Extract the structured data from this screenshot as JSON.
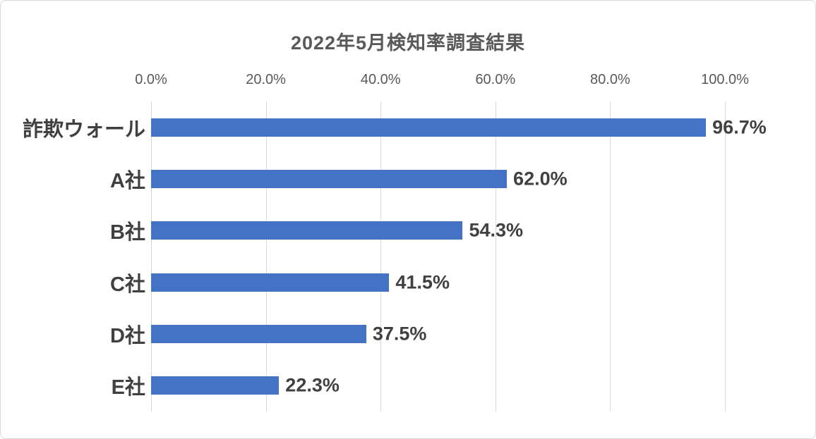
{
  "chart_data": {
    "type": "bar",
    "orientation": "horizontal",
    "title": "2022年5月検知率調査結果",
    "categories": [
      "詐欺ウォール",
      "A社",
      "B社",
      "C社",
      "D社",
      "E社"
    ],
    "values": [
      96.7,
      62.0,
      54.3,
      41.5,
      37.5,
      22.3
    ],
    "data_labels": [
      "96.7%",
      "62.0%",
      "54.3%",
      "41.5%",
      "37.5%",
      "22.3%"
    ],
    "xlim": [
      0,
      100
    ],
    "x_tick_values": [
      0,
      20,
      40,
      60,
      80,
      100
    ],
    "x_tick_labels": [
      "0.0%",
      "20.0%",
      "40.0%",
      "60.0%",
      "80.0%",
      "100.0%"
    ],
    "xlabel": "",
    "ylabel": "",
    "grid": "vertical",
    "legend": "none",
    "axis_labels_position": "top",
    "colors": {
      "bar": "#4472C4",
      "grid": "#d9d9d9",
      "title": "#595959",
      "tick_label": "#595959",
      "category_label": "#404040",
      "value_label": "#404040",
      "background": "#ffffff",
      "border": "#d9d9d9"
    }
  }
}
